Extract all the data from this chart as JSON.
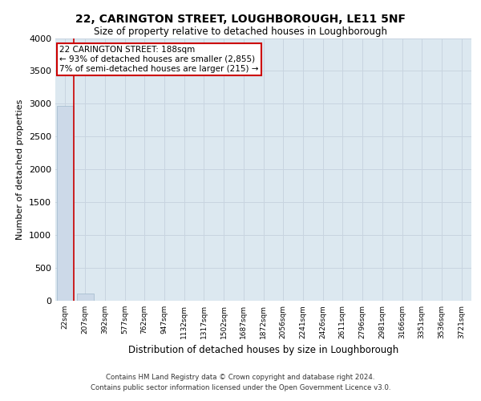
{
  "title": "22, CARINGTON STREET, LOUGHBOROUGH, LE11 5NF",
  "subtitle": "Size of property relative to detached houses in Loughborough",
  "xlabel": "Distribution of detached houses by size in Loughborough",
  "ylabel": "Number of detached properties",
  "footer_line1": "Contains HM Land Registry data © Crown copyright and database right 2024.",
  "footer_line2": "Contains public sector information licensed under the Open Government Licence v3.0.",
  "categories": [
    "22sqm",
    "207sqm",
    "392sqm",
    "577sqm",
    "762sqm",
    "947sqm",
    "1132sqm",
    "1317sqm",
    "1502sqm",
    "1687sqm",
    "1872sqm",
    "2056sqm",
    "2241sqm",
    "2426sqm",
    "2611sqm",
    "2796sqm",
    "2981sqm",
    "3166sqm",
    "3351sqm",
    "3536sqm",
    "3721sqm"
  ],
  "bar_heights": [
    2970,
    110,
    0,
    0,
    0,
    0,
    0,
    0,
    0,
    0,
    0,
    0,
    0,
    0,
    0,
    0,
    0,
    0,
    0,
    0,
    0
  ],
  "bar_color": "#ccd9e8",
  "bar_edge_color": "#a0b8cc",
  "grid_color": "#c8d4e0",
  "background_color": "#dce8f0",
  "ylim": [
    0,
    4000
  ],
  "yticks": [
    0,
    500,
    1000,
    1500,
    2000,
    2500,
    3000,
    3500,
    4000
  ],
  "annotation_text": "22 CARINGTON STREET: 188sqm\n← 93% of detached houses are smaller (2,855)\n7% of semi-detached houses are larger (215) →",
  "annotation_box_color": "#ffffff",
  "annotation_border_color": "#cc0000",
  "red_line_color": "#cc0000"
}
